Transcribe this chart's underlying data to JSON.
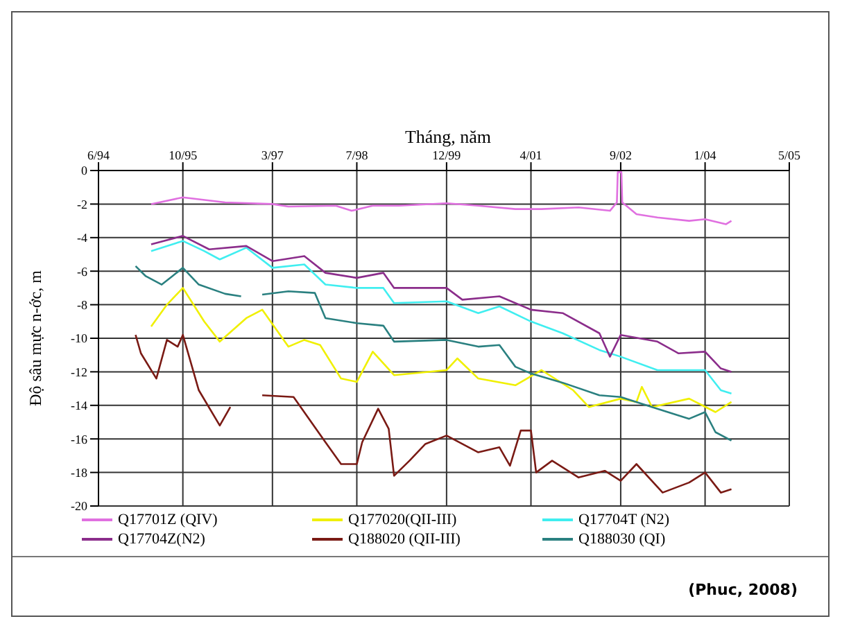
{
  "chart_data": {
    "type": "line",
    "xlabel": "Tháng, năm",
    "ylabel": "Độ sâu mực n-ớc, m",
    "annotations": [
      "(Phuc, 2008)"
    ],
    "xlim": [
      "1994-06",
      "2005-05"
    ],
    "xticks": [
      {
        "value": "1994-06",
        "label": "6/94"
      },
      {
        "value": "1995-10",
        "label": "10/95"
      },
      {
        "value": "1997-03",
        "label": "3/97"
      },
      {
        "value": "1998-07",
        "label": "7/98"
      },
      {
        "value": "1999-12",
        "label": "12/99"
      },
      {
        "value": "2001-04",
        "label": "4/01"
      },
      {
        "value": "2002-09",
        "label": "9/02"
      },
      {
        "value": "2004-01",
        "label": "1/04"
      },
      {
        "value": "2005-05",
        "label": "5/05"
      }
    ],
    "ylim": [
      -20,
      0
    ],
    "yticks": [
      0,
      -2,
      -4,
      -6,
      -8,
      -10,
      -12,
      -14,
      -16,
      -18,
      -20
    ],
    "grid": true,
    "legend": "bottom",
    "marker": "none",
    "line_style": "solid",
    "series": [
      {
        "name": "Q17701Z (QIV)",
        "color": "#e070e0",
        "x": [
          "1995-04",
          "1995-10",
          "1996-06",
          "1997-03",
          "1997-06",
          "1998-03",
          "1998-06",
          "1998-10",
          "1999-03",
          "1999-12",
          "2000-06",
          "2001-01",
          "2001-06",
          "2002-01",
          "2002-07",
          "2002-08-10",
          "2002-08-15",
          "2002-09-05",
          "2002-09-10",
          "2002-12",
          "2003-04",
          "2003-10",
          "2004-01",
          "2004-05",
          "2004-06"
        ],
        "values": [
          -2.0,
          -1.6,
          -1.9,
          -2.0,
          -2.15,
          -2.1,
          -2.4,
          -2.1,
          -2.1,
          -1.95,
          -2.1,
          -2.3,
          -2.3,
          -2.2,
          -2.4,
          -1.9,
          -0.1,
          -0.1,
          -1.9,
          -2.6,
          -2.8,
          -3.0,
          -2.9,
          -3.2,
          -3.0
        ]
      },
      {
        "name": "Q177020(QII-III)",
        "color": "#f0f000",
        "x": [
          "1995-04",
          "1995-07",
          "1995-10",
          "1996-02",
          "1996-05",
          "1996-10",
          "1997-01",
          "1997-06",
          "1997-09",
          "1997-12",
          "1998-04",
          "1998-07",
          "1998-10",
          "1999-02",
          "1999-12",
          "2000-02",
          "2000-06",
          "2001-01",
          "2001-06",
          "2001-12",
          "2002-03",
          "2002-09",
          "2002-12",
          "2003-01",
          "2003-03",
          "2003-10",
          "2004-03",
          "2004-06"
        ],
        "values": [
          -9.3,
          -8.0,
          -7.0,
          -9.0,
          -10.2,
          -8.8,
          -8.3,
          -10.5,
          -10.1,
          -10.4,
          -12.4,
          -12.6,
          -10.8,
          -12.2,
          -11.9,
          -11.2,
          -12.4,
          -12.8,
          -11.9,
          -13.1,
          -14.1,
          -13.6,
          -13.8,
          -12.9,
          -14.1,
          -13.6,
          -14.4,
          -13.8
        ]
      },
      {
        "name": "Q17704T (N2)",
        "color": "#40eef0",
        "x": [
          "1995-04",
          "1995-10",
          "1996-02",
          "1996-05",
          "1996-10",
          "1997-03",
          "1997-09",
          "1998-01",
          "1998-07",
          "1998-12",
          "1999-02",
          "1999-12",
          "2000-06",
          "2000-10",
          "2001-04",
          "2001-10",
          "2002-05",
          "2002-09",
          "2003-04",
          "2004-01",
          "2004-04",
          "2004-06"
        ],
        "values": [
          -4.8,
          -4.2,
          -4.8,
          -5.3,
          -4.6,
          -5.8,
          -5.6,
          -6.8,
          -7.0,
          -7.0,
          -7.9,
          -7.8,
          -8.5,
          -8.1,
          -9.0,
          -9.7,
          -10.7,
          -11.1,
          -11.9,
          -11.9,
          -13.1,
          -13.3
        ]
      },
      {
        "name": "Q17704Z(N2)",
        "color": "#8b2d8b",
        "x": [
          "1995-04",
          "1995-10",
          "1996-03",
          "1996-10",
          "1997-03",
          "1997-09",
          "1998-01",
          "1998-07",
          "1998-12",
          "1999-02",
          "1999-12",
          "2000-03",
          "2000-10",
          "2001-04",
          "2001-10",
          "2002-05",
          "2002-07",
          "2002-09",
          "2003-04",
          "2003-08",
          "2004-01",
          "2004-04",
          "2004-06"
        ],
        "values": [
          -4.4,
          -3.9,
          -4.7,
          -4.5,
          -5.4,
          -5.1,
          -6.1,
          -6.4,
          -6.1,
          -7.0,
          -7.0,
          -7.7,
          -7.5,
          -8.3,
          -8.5,
          -9.7,
          -11.1,
          -9.8,
          -10.2,
          -10.9,
          -10.8,
          -11.8,
          -12.0
        ]
      },
      {
        "name": "Q188020 (QII-III)",
        "color": "#7a1a14",
        "x": [
          "1995-01",
          "1995-02",
          "1995-05",
          "1995-07",
          "1995-09",
          "1995-10",
          "1996-01",
          "1996-05",
          "1996-07",
          "1996-10",
          "1997-01",
          "1997-07",
          "1998-01",
          "1998-04",
          "1998-07",
          "1998-08",
          "1998-11",
          "1999-01",
          "1999-02",
          "1999-05",
          "1999-08",
          "1999-12",
          "2000-06",
          "2000-10",
          "2000-12",
          "2001-02",
          "2001-04",
          "2001-05",
          "2001-08",
          "2002-01",
          "2002-06",
          "2002-09",
          "2002-12",
          "2003-05",
          "2003-10",
          "2004-01",
          "2004-04",
          "2004-06"
        ],
        "values": [
          -9.8,
          -10.9,
          -12.4,
          -10.1,
          -10.5,
          -9.8,
          -13.1,
          -15.2,
          -14.1,
          null,
          -13.4,
          -13.5,
          -16.2,
          -17.5,
          -17.5,
          -16.2,
          -14.2,
          -15.4,
          -18.2,
          -17.3,
          -16.3,
          -15.8,
          -16.8,
          -16.5,
          -17.6,
          -15.5,
          -15.5,
          -18.0,
          -17.3,
          -18.3,
          -17.9,
          -18.5,
          -17.5,
          -19.2,
          -18.6,
          -18.0,
          -19.2,
          -19.0
        ]
      },
      {
        "name": "Q188030 (QI)",
        "color": "#2a8080",
        "x": [
          "1995-01",
          "1995-03",
          "1995-06",
          "1995-08",
          "1995-10",
          "1996-01",
          "1996-06",
          "1996-09",
          "1996-11",
          "1997-01",
          "1997-06",
          "1997-11",
          "1998-01",
          "1998-07",
          "1998-12",
          "1999-02",
          "1999-12",
          "2000-06",
          "2000-10",
          "2001-01",
          "2001-04",
          "2001-10",
          "2002-05",
          "2002-09",
          "2003-04",
          "2003-10",
          "2004-01",
          "2004-03",
          "2004-06"
        ],
        "values": [
          -5.7,
          -6.3,
          -6.8,
          -6.3,
          -5.8,
          -6.8,
          -7.35,
          -7.5,
          null,
          -7.4,
          -7.2,
          -7.3,
          -8.8,
          -9.1,
          -9.25,
          -10.2,
          -10.1,
          -10.5,
          -10.4,
          -11.7,
          -12.1,
          -12.65,
          -13.4,
          -13.5,
          -14.2,
          -14.8,
          -14.4,
          -15.6,
          -16.1
        ]
      }
    ]
  }
}
